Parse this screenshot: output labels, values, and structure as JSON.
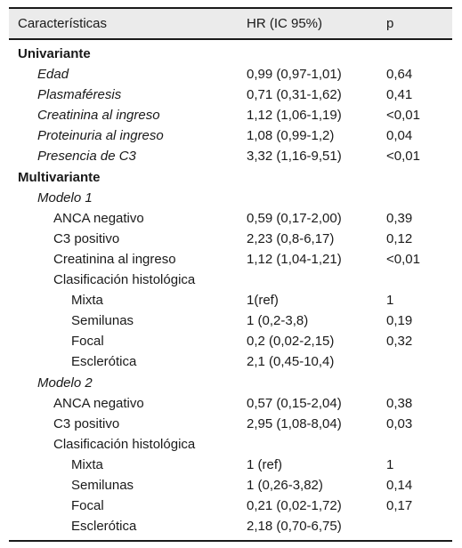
{
  "table": {
    "headers": [
      "Características",
      "HR (IC 95%)",
      "p"
    ],
    "rows": [
      {
        "label": "Univariante",
        "hr": "",
        "p": "",
        "level": 0,
        "italic": false
      },
      {
        "label": "Edad",
        "hr": "0,99 (0,97-1,01)",
        "p": "0,64",
        "level": 1,
        "italic": true
      },
      {
        "label": "Plasmaféresis",
        "hr": "0,71 (0,31-1,62)",
        "p": "0,41",
        "level": 1,
        "italic": true
      },
      {
        "label": "Creatinina al ingreso",
        "hr": "1,12 (1,06-1,19)",
        "p": "<0,01",
        "level": 1,
        "italic": true
      },
      {
        "label": "Proteinuria al ingreso",
        "hr": "1,08 (0,99-1,2)",
        "p": "0,04",
        "level": 1,
        "italic": true
      },
      {
        "label": "Presencia de C3",
        "hr": "3,32 (1,16-9,51)",
        "p": "<0,01",
        "level": 1,
        "italic": true
      },
      {
        "label": "Multivariante",
        "hr": "",
        "p": "",
        "level": 0,
        "italic": false
      },
      {
        "label": "Modelo 1",
        "hr": "",
        "p": "",
        "level": 1,
        "italic": true
      },
      {
        "label": "ANCA negativo",
        "hr": "0,59 (0,17-2,00)",
        "p": "0,39",
        "level": 2,
        "italic": false
      },
      {
        "label": "C3 positivo",
        "hr": "2,23 (0,8-6,17)",
        "p": "0,12",
        "level": 2,
        "italic": false
      },
      {
        "label": "Creatinina al ingreso",
        "hr": "1,12 (1,04-1,21)",
        "p": "<0,01",
        "level": 2,
        "italic": false
      },
      {
        "label": "Clasificación histológica",
        "hr": "",
        "p": "",
        "level": 2,
        "italic": false
      },
      {
        "label": "Mixta",
        "hr": "1(ref)",
        "p": "1",
        "level": 3,
        "italic": false
      },
      {
        "label": "Semilunas",
        "hr": "1 (0,2-3,8)",
        "p": "0,19",
        "level": 3,
        "italic": false
      },
      {
        "label": "Focal",
        "hr": "0,2 (0,02-2,15)",
        "p": "0,32",
        "level": 3,
        "italic": false
      },
      {
        "label": "Esclerótica",
        "hr": "2,1 (0,45-10,4)",
        "p": "",
        "level": 3,
        "italic": false
      },
      {
        "label": "Modelo 2",
        "hr": "",
        "p": "",
        "level": 1,
        "italic": true
      },
      {
        "label": "ANCA negativo",
        "hr": "0,57 (0,15-2,04)",
        "p": "0,38",
        "level": 2,
        "italic": false
      },
      {
        "label": "C3 positivo",
        "hr": "2,95 (1,08-8,04)",
        "p": "0,03",
        "level": 2,
        "italic": false
      },
      {
        "label": "Clasificación histológica",
        "hr": "",
        "p": "",
        "level": 2,
        "italic": false
      },
      {
        "label": "Mixta",
        "hr": "1 (ref)",
        "p": "1",
        "level": 3,
        "italic": false
      },
      {
        "label": "Semilunas",
        "hr": "1 (0,26-3,82)",
        "p": "0,14",
        "level": 3,
        "italic": false
      },
      {
        "label": "Focal",
        "hr": "0,21 (0,02-1,72)",
        "p": "0,17",
        "level": 3,
        "italic": false
      },
      {
        "label": "Esclerótica",
        "hr": "2,18 (0,70-6,75)",
        "p": "",
        "level": 3,
        "italic": false
      }
    ]
  }
}
